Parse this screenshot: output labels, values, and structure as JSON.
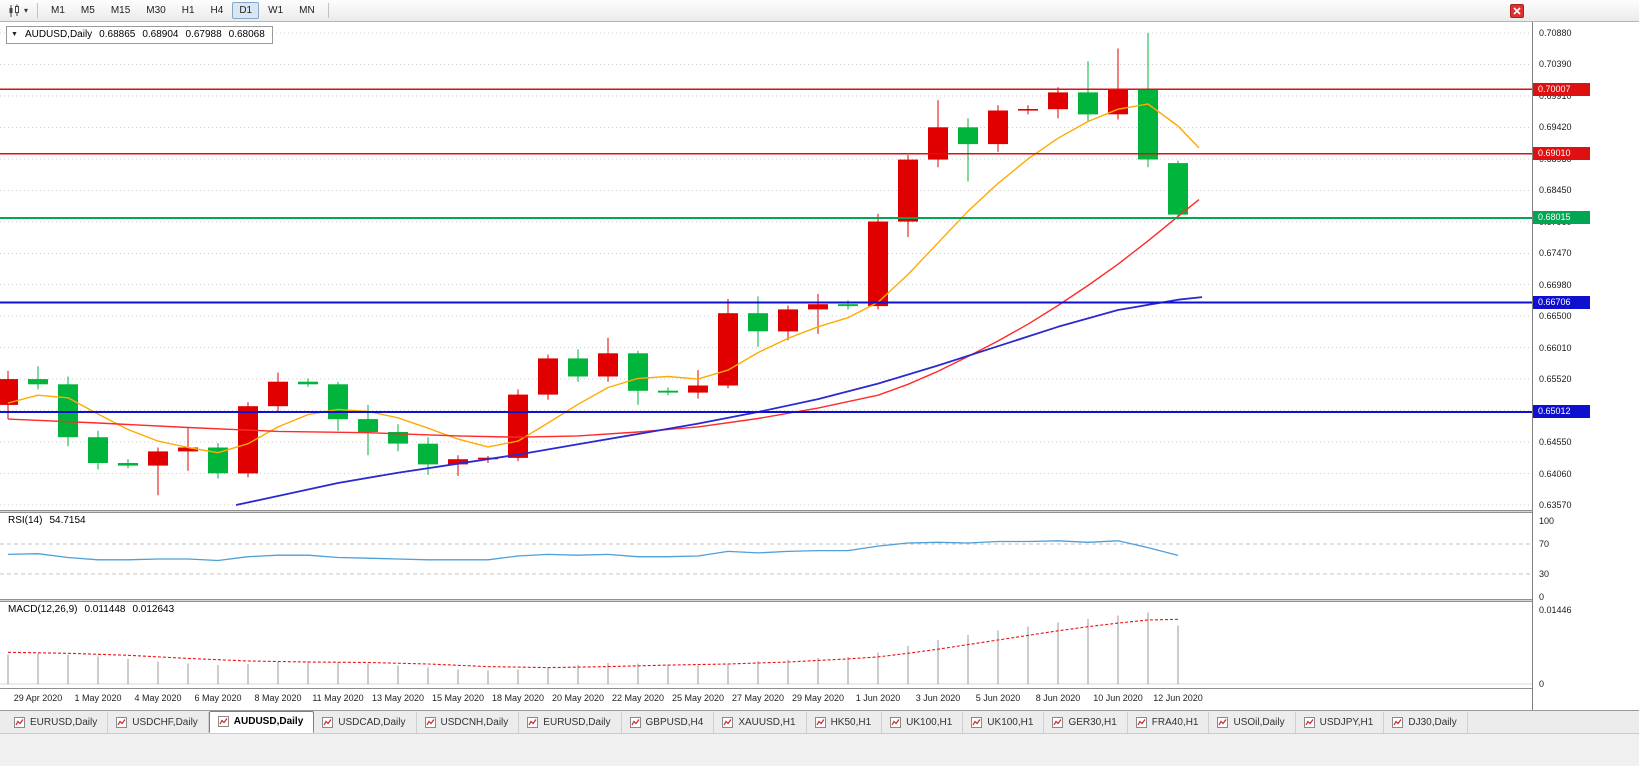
{
  "icons": {
    "dropdown_caret": "▼",
    "toolbar_caret": "▾"
  },
  "toolbar": {
    "timeframes": [
      "M1",
      "M5",
      "M15",
      "M30",
      "H1",
      "H4",
      "D1",
      "W1",
      "MN"
    ],
    "active_timeframe": "D1"
  },
  "chart_header": {
    "symbol": "AUDUSD,Daily",
    "open": "0.68865",
    "high": "0.68904",
    "low": "0.67988",
    "close": "0.68068"
  },
  "chart_data": {
    "type": "candlestick",
    "symbol": "AUDUSD",
    "timeframe": "Daily",
    "colors": {
      "bull": "#e00000",
      "bear": "#00b43c",
      "grid": "#cdcdcd"
    },
    "price_axis": {
      "max": 0.7088,
      "min": 0.6357,
      "ticks": [
        "0.70880",
        "0.70390",
        "0.69910",
        "0.69420",
        "0.68930",
        "0.68450",
        "0.67960",
        "0.67470",
        "0.66980",
        "0.66500",
        "0.66010",
        "0.65520",
        "0.65030",
        "0.64550",
        "0.64060",
        "0.63570"
      ]
    },
    "hlines": [
      {
        "price": 0.70007,
        "label": "0.70007",
        "color": "#dd1111",
        "width": 1.4
      },
      {
        "price": 0.6901,
        "label": "0.69010",
        "color": "#dd1111",
        "width": 1.4
      },
      {
        "price": 0.68015,
        "label": "0.68015",
        "color": "#00a651",
        "width": 2
      },
      {
        "price": 0.66706,
        "label": "0.66706",
        "color": "#0f0fd0",
        "width": 2
      },
      {
        "price": 0.65012,
        "label": "0.65012",
        "color": "#0f0fd0",
        "width": 2
      }
    ],
    "candles": [
      {
        "d": "28 Apr 2020",
        "o": 0.6512,
        "h": 0.6565,
        "l": 0.649,
        "c": 0.6552
      },
      {
        "d": "29 Apr 2020",
        "o": 0.6552,
        "h": 0.6572,
        "l": 0.6536,
        "c": 0.6544
      },
      {
        "d": "30 Apr 2020",
        "o": 0.6544,
        "h": 0.6556,
        "l": 0.6448,
        "c": 0.6462
      },
      {
        "d": "1 May 2020",
        "o": 0.6462,
        "h": 0.6472,
        "l": 0.6412,
        "c": 0.6422
      },
      {
        "d": "3 May 2020",
        "o": 0.6422,
        "h": 0.6428,
        "l": 0.6414,
        "c": 0.6418
      },
      {
        "d": "4 May 2020",
        "o": 0.6418,
        "h": 0.6446,
        "l": 0.6372,
        "c": 0.644
      },
      {
        "d": "5 May 2020",
        "o": 0.644,
        "h": 0.6476,
        "l": 0.641,
        "c": 0.6446
      },
      {
        "d": "6 May 2020",
        "o": 0.6446,
        "h": 0.6453,
        "l": 0.6398,
        "c": 0.6406
      },
      {
        "d": "7 May 2020",
        "o": 0.6406,
        "h": 0.6516,
        "l": 0.64,
        "c": 0.651
      },
      {
        "d": "8 May 2020",
        "o": 0.651,
        "h": 0.6562,
        "l": 0.6502,
        "c": 0.6548
      },
      {
        "d": "10 May 2020",
        "o": 0.6548,
        "h": 0.6553,
        "l": 0.654,
        "c": 0.6544
      },
      {
        "d": "11 May 2020",
        "o": 0.6544,
        "h": 0.6548,
        "l": 0.6472,
        "c": 0.649
      },
      {
        "d": "12 May 2020",
        "o": 0.649,
        "h": 0.6512,
        "l": 0.6434,
        "c": 0.647
      },
      {
        "d": "13 May 2020",
        "o": 0.647,
        "h": 0.6482,
        "l": 0.644,
        "c": 0.6452
      },
      {
        "d": "14 May 2020",
        "o": 0.6452,
        "h": 0.6462,
        "l": 0.6404,
        "c": 0.642
      },
      {
        "d": "15 May 2020",
        "o": 0.642,
        "h": 0.6434,
        "l": 0.6402,
        "c": 0.6428
      },
      {
        "d": "17 May 2020",
        "o": 0.6428,
        "h": 0.6433,
        "l": 0.6422,
        "c": 0.643
      },
      {
        "d": "18 May 2020",
        "o": 0.643,
        "h": 0.6536,
        "l": 0.6425,
        "c": 0.6528
      },
      {
        "d": "19 May 2020",
        "o": 0.6528,
        "h": 0.659,
        "l": 0.652,
        "c": 0.6584
      },
      {
        "d": "20 May 2020",
        "o": 0.6584,
        "h": 0.6598,
        "l": 0.6548,
        "c": 0.6556
      },
      {
        "d": "21 May 2020",
        "o": 0.6556,
        "h": 0.6616,
        "l": 0.6548,
        "c": 0.6592
      },
      {
        "d": "22 May 2020",
        "o": 0.6592,
        "h": 0.6596,
        "l": 0.6512,
        "c": 0.6534
      },
      {
        "d": "24 May 2020",
        "o": 0.6534,
        "h": 0.6539,
        "l": 0.6527,
        "c": 0.6531
      },
      {
        "d": "25 May 2020",
        "o": 0.6531,
        "h": 0.6566,
        "l": 0.6522,
        "c": 0.6542
      },
      {
        "d": "26 May 2020",
        "o": 0.6542,
        "h": 0.6676,
        "l": 0.6538,
        "c": 0.6654
      },
      {
        "d": "27 May 2020",
        "o": 0.6654,
        "h": 0.668,
        "l": 0.6602,
        "c": 0.6626
      },
      {
        "d": "28 May 2020",
        "o": 0.6626,
        "h": 0.6666,
        "l": 0.6612,
        "c": 0.666
      },
      {
        "d": "29 May 2020",
        "o": 0.666,
        "h": 0.6684,
        "l": 0.6622,
        "c": 0.6668
      },
      {
        "d": "31 May 2020",
        "o": 0.6668,
        "h": 0.6674,
        "l": 0.666,
        "c": 0.6665
      },
      {
        "d": "1 Jun 2020",
        "o": 0.6665,
        "h": 0.6808,
        "l": 0.666,
        "c": 0.6796
      },
      {
        "d": "2 Jun 2020",
        "o": 0.6796,
        "h": 0.6899,
        "l": 0.6772,
        "c": 0.6892
      },
      {
        "d": "3 Jun 2020",
        "o": 0.6892,
        "h": 0.6984,
        "l": 0.688,
        "c": 0.6942
      },
      {
        "d": "4 Jun 2020",
        "o": 0.6942,
        "h": 0.6956,
        "l": 0.6858,
        "c": 0.6916
      },
      {
        "d": "5 Jun 2020",
        "o": 0.6916,
        "h": 0.6976,
        "l": 0.6904,
        "c": 0.6968
      },
      {
        "d": "7 Jun 2020",
        "o": 0.6968,
        "h": 0.6976,
        "l": 0.6962,
        "c": 0.697
      },
      {
        "d": "8 Jun 2020",
        "o": 0.697,
        "h": 0.7004,
        "l": 0.6956,
        "c": 0.6996
      },
      {
        "d": "9 Jun 2020",
        "o": 0.6996,
        "h": 0.7044,
        "l": 0.695,
        "c": 0.6962
      },
      {
        "d": "10 Jun 2020",
        "o": 0.6962,
        "h": 0.7064,
        "l": 0.6954,
        "c": 0.7002
      },
      {
        "d": "11 Jun 2020",
        "o": 0.7002,
        "h": 0.7088,
        "l": 0.688,
        "c": 0.6892
      },
      {
        "d": "12 Jun 2020",
        "o": 0.68865,
        "h": 0.68904,
        "l": 0.67988,
        "c": 0.68068
      }
    ],
    "moving_averages": [
      {
        "name": "fast",
        "color": "#ffaa00",
        "width": 1.4,
        "points": [
          [
            0,
            0.6515
          ],
          [
            1,
            0.6527
          ],
          [
            2,
            0.6523
          ],
          [
            3,
            0.6498
          ],
          [
            4,
            0.6474
          ],
          [
            5,
            0.6456
          ],
          [
            6,
            0.6446
          ],
          [
            7,
            0.6438
          ],
          [
            8,
            0.6452
          ],
          [
            9,
            0.6478
          ],
          [
            10,
            0.6497
          ],
          [
            11,
            0.6505
          ],
          [
            12,
            0.6502
          ],
          [
            13,
            0.6492
          ],
          [
            14,
            0.6476
          ],
          [
            15,
            0.6459
          ],
          [
            16,
            0.6447
          ],
          [
            17,
            0.6456
          ],
          [
            18,
            0.6484
          ],
          [
            19,
            0.6513
          ],
          [
            20,
            0.6539
          ],
          [
            21,
            0.6553
          ],
          [
            22,
            0.6556
          ],
          [
            23,
            0.6552
          ],
          [
            24,
            0.6566
          ],
          [
            25,
            0.6593
          ],
          [
            26,
            0.6615
          ],
          [
            27,
            0.6633
          ],
          [
            28,
            0.6647
          ],
          [
            29,
            0.6671
          ],
          [
            30,
            0.6714
          ],
          [
            31,
            0.6763
          ],
          [
            32,
            0.6812
          ],
          [
            33,
            0.6855
          ],
          [
            34,
            0.6893
          ],
          [
            35,
            0.6925
          ],
          [
            36,
            0.6951
          ],
          [
            37,
            0.697
          ],
          [
            38,
            0.6978
          ],
          [
            39,
            0.6944
          ],
          [
            39.7,
            0.691
          ]
        ]
      },
      {
        "name": "medium",
        "color": "#ff2a2a",
        "width": 1.4,
        "points": [
          [
            0,
            0.649
          ],
          [
            3,
            0.6484
          ],
          [
            6,
            0.6477
          ],
          [
            9,
            0.6471
          ],
          [
            12,
            0.6469
          ],
          [
            15,
            0.6464
          ],
          [
            17,
            0.6462
          ],
          [
            19,
            0.6464
          ],
          [
            21,
            0.647
          ],
          [
            23,
            0.6478
          ],
          [
            25,
            0.6491
          ],
          [
            27,
            0.6507
          ],
          [
            29,
            0.6527
          ],
          [
            30,
            0.6544
          ],
          [
            31,
            0.6564
          ],
          [
            32,
            0.6587
          ],
          [
            33,
            0.6611
          ],
          [
            34,
            0.6637
          ],
          [
            35,
            0.6666
          ],
          [
            36,
            0.6697
          ],
          [
            37,
            0.673
          ],
          [
            38,
            0.6766
          ],
          [
            39,
            0.6804
          ],
          [
            39.7,
            0.683
          ]
        ]
      },
      {
        "name": "slow",
        "color": "#2a2ad0",
        "width": 1.8,
        "points": [
          [
            7.6,
            0.6357
          ],
          [
            9,
            0.6371
          ],
          [
            11,
            0.6391
          ],
          [
            13,
            0.6407
          ],
          [
            15,
            0.6421
          ],
          [
            17,
            0.6435
          ],
          [
            19,
            0.6451
          ],
          [
            21,
            0.6467
          ],
          [
            23,
            0.6483
          ],
          [
            25,
            0.6501
          ],
          [
            27,
            0.6521
          ],
          [
            29,
            0.6545
          ],
          [
            31,
            0.6573
          ],
          [
            33,
            0.6603
          ],
          [
            35,
            0.6633
          ],
          [
            37,
            0.6659
          ],
          [
            39,
            0.6675
          ],
          [
            39.8,
            0.6679
          ]
        ]
      }
    ],
    "date_labels": [
      {
        "i": 1,
        "label": "29 Apr 2020"
      },
      {
        "i": 3,
        "label": "1 May 2020"
      },
      {
        "i": 5,
        "label": "4 May 2020"
      },
      {
        "i": 7,
        "label": "6 May 2020"
      },
      {
        "i": 9,
        "label": "8 May 2020"
      },
      {
        "i": 11,
        "label": "11 May 2020"
      },
      {
        "i": 13,
        "label": "13 May 2020"
      },
      {
        "i": 15,
        "label": "15 May 2020"
      },
      {
        "i": 17,
        "label": "18 May 2020"
      },
      {
        "i": 19,
        "label": "20 May 2020"
      },
      {
        "i": 21,
        "label": "22 May 2020"
      },
      {
        "i": 23,
        "label": "25 May 2020"
      },
      {
        "i": 25,
        "label": "27 May 2020"
      },
      {
        "i": 27,
        "label": "29 May 2020"
      },
      {
        "i": 29,
        "label": "1 Jun 2020"
      },
      {
        "i": 31,
        "label": "3 Jun 2020"
      },
      {
        "i": 33,
        "label": "5 Jun 2020"
      },
      {
        "i": 35,
        "label": "8 Jun 2020"
      },
      {
        "i": 37,
        "label": "10 Jun 2020"
      },
      {
        "i": 39,
        "label": "12 Jun 2020"
      }
    ],
    "rsi": {
      "name": "RSI(14)",
      "value": "54.7154",
      "color": "#4f9fd8",
      "levels": [
        100,
        70,
        30,
        0
      ],
      "dashed_levels": [
        70,
        30
      ],
      "values": [
        56,
        57,
        52,
        49,
        49,
        50,
        50,
        48,
        53,
        55,
        55,
        52,
        51,
        50,
        49,
        49,
        49,
        54,
        56,
        55,
        56,
        53,
        53,
        54,
        60,
        58,
        60,
        61,
        61,
        67,
        71,
        72,
        71,
        73,
        73,
        74,
        72,
        74,
        65,
        54.7
      ]
    },
    "macd": {
      "name": "MACD(12,26,9)",
      "main_value": "0.011448",
      "signal_value": "0.012643",
      "hist_color": "#9a9a9a",
      "signal_color": "#ee1111",
      "axis_max": 0.01446,
      "axis_ticks": [
        {
          "label": "0.01446",
          "value": 0.01446
        },
        {
          "label": "0",
          "value": 0
        }
      ],
      "histogram": [
        0.0058,
        0.006,
        0.0058,
        0.0054,
        0.0049,
        0.0044,
        0.004,
        0.0037,
        0.0039,
        0.0043,
        0.0045,
        0.0043,
        0.004,
        0.0036,
        0.0032,
        0.0028,
        0.0026,
        0.0028,
        0.0032,
        0.0037,
        0.0041,
        0.004,
        0.0038,
        0.0036,
        0.004,
        0.0045,
        0.0048,
        0.0051,
        0.0053,
        0.0062,
        0.0074,
        0.0086,
        0.0096,
        0.0105,
        0.0112,
        0.012,
        0.0127,
        0.0134,
        0.014,
        0.011448
      ],
      "signal_points": [
        [
          0,
          0.0062
        ],
        [
          2,
          0.006
        ],
        [
          4,
          0.0056
        ],
        [
          6,
          0.005
        ],
        [
          8,
          0.0045
        ],
        [
          10,
          0.0043
        ],
        [
          12,
          0.0042
        ],
        [
          14,
          0.0039
        ],
        [
          16,
          0.0034
        ],
        [
          18,
          0.0032
        ],
        [
          20,
          0.0034
        ],
        [
          22,
          0.0037
        ],
        [
          24,
          0.0039
        ],
        [
          26,
          0.0043
        ],
        [
          28,
          0.0049
        ],
        [
          29,
          0.0053
        ],
        [
          30,
          0.006
        ],
        [
          31,
          0.0068
        ],
        [
          32,
          0.0077
        ],
        [
          33,
          0.0086
        ],
        [
          34,
          0.0095
        ],
        [
          35,
          0.0104
        ],
        [
          36,
          0.0112
        ],
        [
          37,
          0.0119
        ],
        [
          38,
          0.0125
        ],
        [
          39,
          0.012643
        ]
      ]
    }
  },
  "bottom_tabs": {
    "active_index": 2,
    "tabs": [
      "EURUSD,Daily",
      "USDCHF,Daily",
      "AUDUSD,Daily",
      "USDCAD,Daily",
      "USDCNH,Daily",
      "EURUSD,Daily",
      "GBPUSD,H4",
      "XAUUSD,H1",
      "HK50,H1",
      "UK100,H1",
      "UK100,H1",
      "GER30,H1",
      "FRA40,H1",
      "USOil,Daily",
      "USDJPY,H1",
      "DJ30,Daily"
    ]
  }
}
